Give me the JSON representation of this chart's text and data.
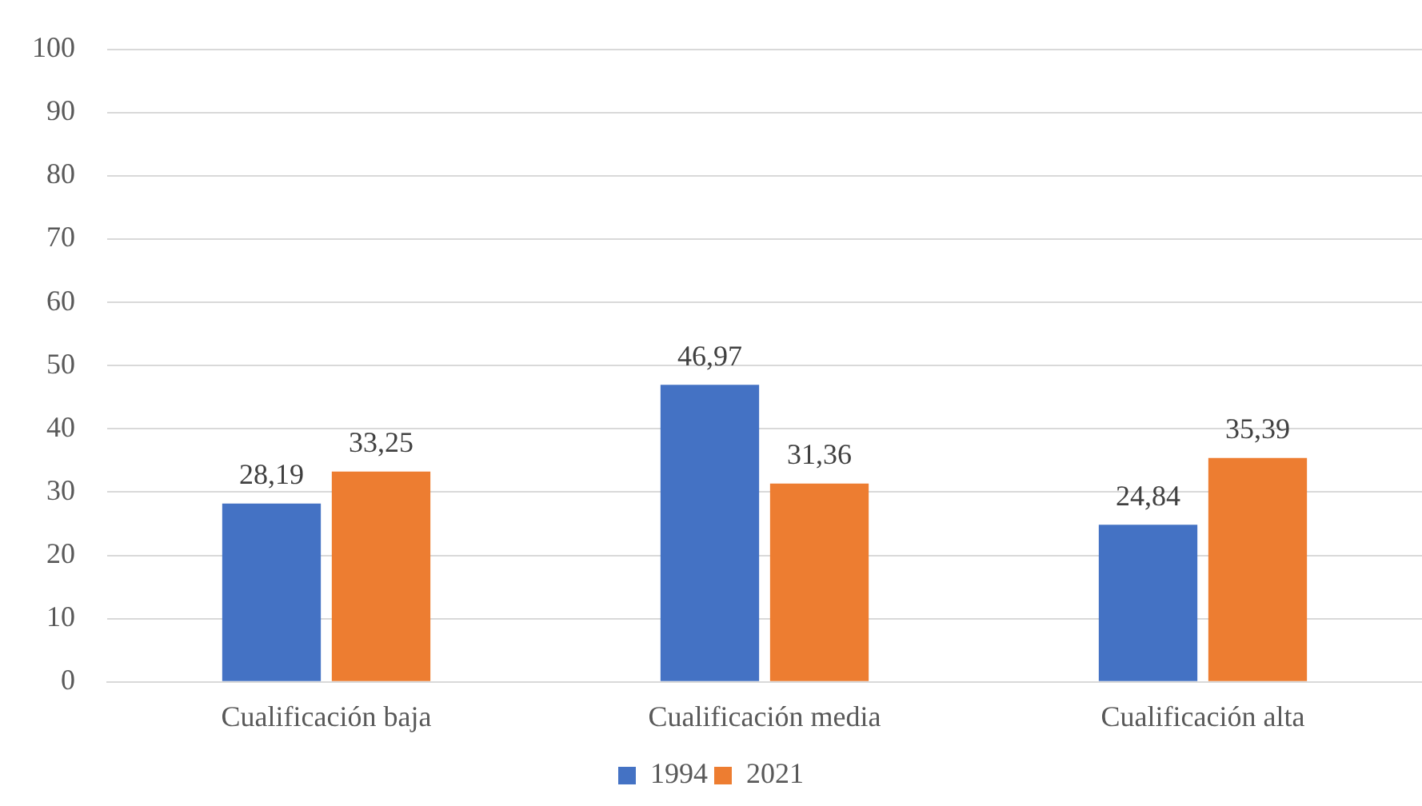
{
  "chart_data": {
    "type": "bar",
    "categories": [
      "Cualificación baja",
      "Cualificación media",
      "Cualificación alta"
    ],
    "series": [
      {
        "name": "1994",
        "color": "#4472c4",
        "values": [
          28.19,
          46.97,
          24.84
        ],
        "value_labels": [
          "28,19",
          "46,97",
          "24,84"
        ]
      },
      {
        "name": "2021",
        "color": "#ed7d31",
        "values": [
          33.25,
          31.36,
          35.39
        ],
        "value_labels": [
          "33,25",
          "31,36",
          "35,39"
        ]
      }
    ],
    "ylim": [
      0,
      100
    ],
    "yticks": [
      0,
      10,
      20,
      30,
      40,
      50,
      60,
      70,
      80,
      90,
      100
    ],
    "grid": "y",
    "legend": "bottom"
  }
}
